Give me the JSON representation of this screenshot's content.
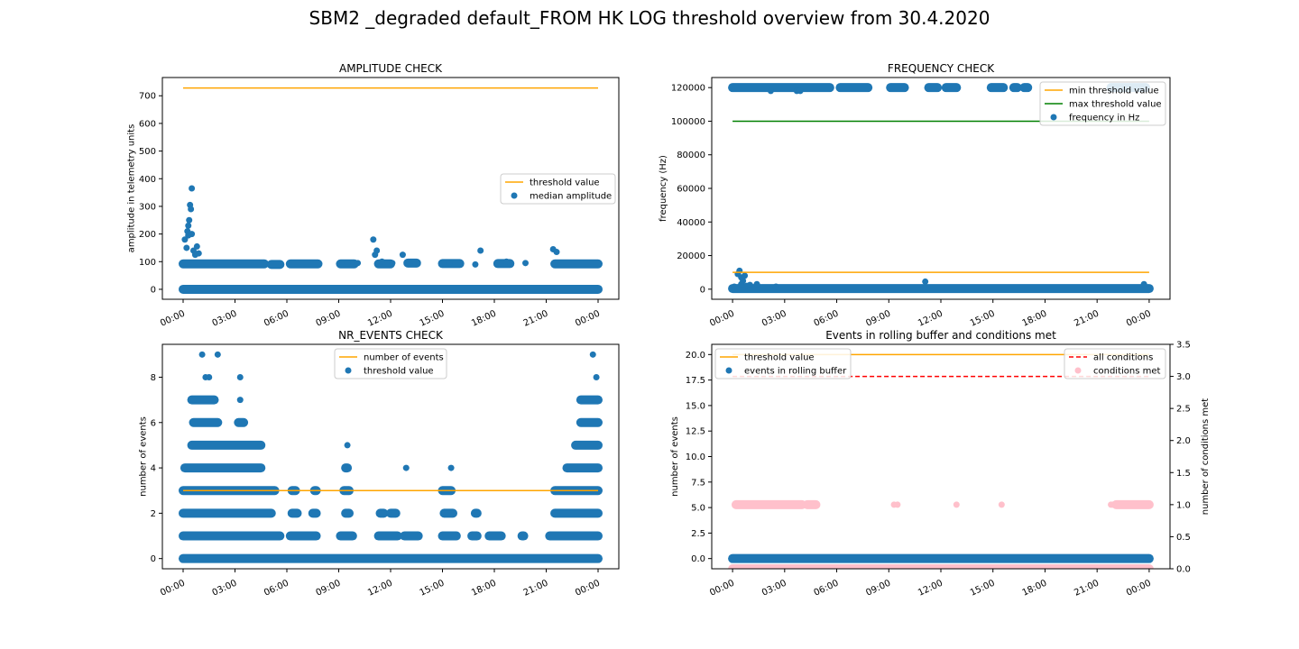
{
  "figure": {
    "title": "SBM2 _degraded default_FROM HK LOG threshold overview from 30.4.2020"
  },
  "colors": {
    "blue": "#1f77b4",
    "orange": "#ffa500",
    "green": "#008000",
    "red": "#ff0000",
    "pink": "#ffc0cb"
  },
  "chart_data": [
    {
      "id": "amplitude",
      "type": "scatter",
      "title": "AMPLITUDE CHECK",
      "xlabel": "",
      "ylabel": "amplitude in telemetry units",
      "x_unit": "hours",
      "xlim": [
        -1.2,
        25.2
      ],
      "ylim": [
        -36,
        766
      ],
      "x_ticks": [
        0,
        3,
        6,
        9,
        12,
        15,
        18,
        21,
        24
      ],
      "x_tick_labels": [
        "00:00",
        "03:00",
        "06:00",
        "09:00",
        "12:00",
        "15:00",
        "18:00",
        "21:00",
        "00:00"
      ],
      "y_ticks": [
        0,
        100,
        200,
        300,
        400,
        500,
        600,
        700
      ],
      "y_tick_labels": [
        "0",
        "100",
        "200",
        "300",
        "400",
        "500",
        "600",
        "700"
      ],
      "legend": {
        "position": "center-right",
        "entries": [
          "threshold value",
          "median amplitude"
        ]
      },
      "series": [
        {
          "name": "threshold value",
          "kind": "line",
          "color": "#ffa500",
          "x": [
            0,
            24
          ],
          "y": [
            728,
            728
          ]
        },
        {
          "name": "median amplitude",
          "kind": "scatter",
          "color": "#1f77b4",
          "x": [
            0.1,
            0.2,
            0.25,
            0.3,
            0.35,
            0.4,
            0.45,
            0.5,
            0.6,
            0.8,
            0.9,
            0.3,
            0.5,
            0.7,
            11.0,
            11.1,
            11.2,
            12.7,
            17.2,
            21.4,
            21.6,
            9.5,
            10.1,
            11.5,
            12.1,
            13.1,
            15.4,
            16.9,
            18.7,
            19.8
          ],
          "y": [
            180,
            150,
            210,
            230,
            250,
            305,
            290,
            365,
            140,
            155,
            130,
            195,
            200,
            125,
            180,
            125,
            140,
            125,
            140,
            145,
            135,
            95,
            95,
            100,
            95,
            95,
            95,
            90,
            100,
            95
          ]
        },
        {
          "name": "median amplitude bands",
          "kind": "band",
          "color": "#1f77b4",
          "segments": [
            [
              0.0,
              24.0,
              0
            ],
            [
              0.0,
              4.7,
              92
            ],
            [
              5.1,
              5.6,
              90
            ],
            [
              6.2,
              7.8,
              92
            ],
            [
              9.1,
              9.9,
              92
            ],
            [
              11.3,
              12.0,
              92
            ],
            [
              13.0,
              13.5,
              95
            ],
            [
              15.0,
              16.0,
              93
            ],
            [
              18.2,
              18.9,
              93
            ],
            [
              21.5,
              24.0,
              92
            ]
          ]
        }
      ]
    },
    {
      "id": "frequency",
      "type": "scatter",
      "title": "FREQUENCY CHECK",
      "xlabel": "",
      "ylabel": "frequency (Hz)",
      "x_unit": "hours",
      "xlim": [
        -1.2,
        25.2
      ],
      "ylim": [
        -6000,
        126000
      ],
      "x_ticks": [
        0,
        3,
        6,
        9,
        12,
        15,
        18,
        21,
        24
      ],
      "x_tick_labels": [
        "00:00",
        "03:00",
        "06:00",
        "09:00",
        "12:00",
        "15:00",
        "18:00",
        "21:00",
        "00:00"
      ],
      "y_ticks": [
        0,
        20000,
        40000,
        60000,
        80000,
        100000,
        120000
      ],
      "y_tick_labels": [
        "0",
        "20000",
        "40000",
        "60000",
        "80000",
        "100000",
        "120000"
      ],
      "legend": {
        "position": "top-right",
        "entries": [
          "min threshold value",
          "max threshold value",
          "frequency in Hz"
        ]
      },
      "series": [
        {
          "name": "min threshold value",
          "kind": "line",
          "color": "#ffa500",
          "x": [
            0,
            24
          ],
          "y": [
            10000,
            10000
          ]
        },
        {
          "name": "max threshold value",
          "kind": "line",
          "color": "#008000",
          "x": [
            0,
            24
          ],
          "y": [
            100000,
            100000
          ]
        },
        {
          "name": "frequency in Hz",
          "kind": "scatter",
          "color": "#1f77b4",
          "x": [
            0.3,
            0.4,
            0.5,
            0.6,
            0.7,
            0.5,
            0.8,
            1.4,
            11.1,
            23.7,
            0.1,
            2.2,
            3.7,
            3.9,
            1.0,
            2.5
          ],
          "y": [
            9000,
            11000,
            7000,
            5000,
            8000,
            3000,
            2000,
            3000,
            4500,
            3000,
            1500,
            118000,
            118000,
            118000,
            2500,
            1500
          ]
        },
        {
          "name": "frequency in Hz bands",
          "kind": "band",
          "color": "#1f77b4",
          "segments": [
            [
              0.0,
              24.0,
              400
            ],
            [
              0.0,
              5.6,
              120000
            ],
            [
              6.2,
              7.8,
              120000
            ],
            [
              9.1,
              9.9,
              120000
            ],
            [
              11.3,
              11.8,
              120000
            ],
            [
              12.3,
              12.9,
              120000
            ],
            [
              14.9,
              15.6,
              120000
            ],
            [
              16.2,
              16.4,
              120000
            ],
            [
              16.8,
              17.0,
              120000
            ],
            [
              21.8,
              23.8,
              120000
            ]
          ]
        }
      ]
    },
    {
      "id": "nr_events",
      "type": "scatter",
      "title": "NR_EVENTS CHECK",
      "xlabel": "",
      "ylabel": "number of events",
      "x_unit": "hours",
      "xlim": [
        -1.2,
        25.2
      ],
      "ylim": [
        -0.45,
        9.45
      ],
      "x_ticks": [
        0,
        3,
        6,
        9,
        12,
        15,
        18,
        21,
        24
      ],
      "x_tick_labels": [
        "00:00",
        "03:00",
        "06:00",
        "09:00",
        "12:00",
        "15:00",
        "18:00",
        "21:00",
        "00:00"
      ],
      "y_ticks": [
        0,
        2,
        4,
        6,
        8
      ],
      "y_tick_labels": [
        "0",
        "2",
        "4",
        "6",
        "8"
      ],
      "legend": {
        "position": "top-center",
        "entries": [
          "number of events",
          "threshold value"
        ]
      },
      "series": [
        {
          "name": "number of events",
          "kind": "line",
          "color": "#ffa500",
          "x": [
            0,
            24
          ],
          "y": [
            3,
            3
          ]
        },
        {
          "name": "threshold value",
          "kind": "scatter",
          "color": "#1f77b4",
          "x": [
            1.1,
            2.0,
            3.3,
            9.5,
            12.9,
            15.5,
            23.7,
            23.9,
            1.3,
            1.5,
            3.3,
            0.6,
            3.4
          ],
          "y": [
            9,
            9,
            8,
            5,
            4,
            4,
            9,
            8,
            8,
            8,
            7,
            7,
            6
          ]
        },
        {
          "name": "threshold value bands",
          "kind": "band",
          "color": "#1f77b4",
          "segments": [
            [
              0.0,
              24.0,
              0
            ],
            [
              0.0,
              5.6,
              1
            ],
            [
              6.2,
              7.7,
              1
            ],
            [
              9.1,
              9.8,
              1
            ],
            [
              11.3,
              12.4,
              1
            ],
            [
              12.8,
              13.6,
              1
            ],
            [
              15.0,
              15.8,
              1
            ],
            [
              16.7,
              17.0,
              1
            ],
            [
              17.7,
              18.4,
              1
            ],
            [
              19.6,
              19.7,
              1
            ],
            [
              21.2,
              24.0,
              1
            ],
            [
              0.0,
              5.1,
              2
            ],
            [
              6.3,
              6.6,
              2
            ],
            [
              7.5,
              7.7,
              2
            ],
            [
              9.4,
              9.6,
              2
            ],
            [
              11.4,
              11.6,
              2
            ],
            [
              12.0,
              12.3,
              2
            ],
            [
              15.1,
              15.6,
              2
            ],
            [
              16.9,
              17.0,
              2
            ],
            [
              21.5,
              24.0,
              2
            ],
            [
              0.0,
              5.3,
              3
            ],
            [
              6.3,
              6.5,
              3
            ],
            [
              7.6,
              7.7,
              3
            ],
            [
              9.3,
              9.6,
              3
            ],
            [
              15.0,
              15.5,
              3
            ],
            [
              21.5,
              24.0,
              3
            ],
            [
              0.1,
              4.5,
              4
            ],
            [
              9.4,
              9.5,
              4
            ],
            [
              22.2,
              24.0,
              4
            ],
            [
              0.5,
              4.5,
              5
            ],
            [
              22.7,
              24.0,
              5
            ],
            [
              0.6,
              2.0,
              6
            ],
            [
              3.2,
              3.5,
              6
            ],
            [
              23.0,
              24.0,
              6
            ],
            [
              0.5,
              1.8,
              7
            ],
            [
              23.0,
              24.0,
              7
            ]
          ]
        }
      ]
    },
    {
      "id": "rolling_buffer",
      "type": "scatter",
      "title": "Events in rolling buffer and conditions met",
      "xlabel": "",
      "ylabel": "number of events",
      "y2label": "number of conditions met",
      "x_unit": "hours",
      "xlim": [
        -1.2,
        25.2
      ],
      "ylim": [
        -1.0,
        21.0
      ],
      "y2lim": [
        0.0,
        3.5
      ],
      "x_ticks": [
        0,
        3,
        6,
        9,
        12,
        15,
        18,
        21,
        24
      ],
      "x_tick_labels": [
        "00:00",
        "03:00",
        "06:00",
        "09:00",
        "12:00",
        "15:00",
        "18:00",
        "21:00",
        "00:00"
      ],
      "y_ticks": [
        0,
        2.5,
        5,
        7.5,
        10,
        12.5,
        15,
        17.5,
        20
      ],
      "y_tick_labels": [
        "0.0",
        "2.5",
        "5.0",
        "7.5",
        "10.0",
        "12.5",
        "15.0",
        "17.5",
        "20.0"
      ],
      "y2_ticks": [
        0,
        0.5,
        1,
        1.5,
        2,
        2.5,
        3,
        3.5
      ],
      "y2_tick_labels": [
        "0.0",
        "0.5",
        "1.0",
        "1.5",
        "2.0",
        "2.5",
        "3.0",
        "3.5"
      ],
      "legend": {
        "position": "top-left and top-right",
        "entries": [
          "threshold value",
          "events in rolling buffer",
          "all conditions",
          "conditions met"
        ]
      },
      "series": [
        {
          "name": "threshold value",
          "kind": "line",
          "color": "#ffa500",
          "axis": "y",
          "x": [
            0,
            24
          ],
          "y": [
            20,
            20
          ]
        },
        {
          "name": "events in rolling buffer",
          "kind": "band",
          "color": "#1f77b4",
          "axis": "y",
          "segments": [
            [
              0.0,
              24.0,
              0
            ]
          ]
        },
        {
          "name": "all conditions",
          "kind": "dashed-line",
          "color": "#ff0000",
          "axis": "y2",
          "x": [
            0,
            24
          ],
          "y": [
            3,
            3
          ]
        },
        {
          "name": "conditions met",
          "kind": "scatter",
          "color": "#ffc0cb",
          "axis": "y2",
          "x": [
            9.3,
            9.5,
            12.9,
            15.5,
            21.8,
            21.9
          ],
          "y": [
            1,
            1,
            1,
            1,
            1,
            1
          ]
        },
        {
          "name": "conditions met bands",
          "kind": "band",
          "color": "#ffc0cb",
          "axis": "y2",
          "segments": [
            [
              0.2,
              4.0,
              1
            ],
            [
              4.3,
              4.8,
              1
            ],
            [
              22.1,
              24.0,
              1
            ],
            [
              0.0,
              24.0,
              0
            ]
          ]
        }
      ]
    }
  ]
}
